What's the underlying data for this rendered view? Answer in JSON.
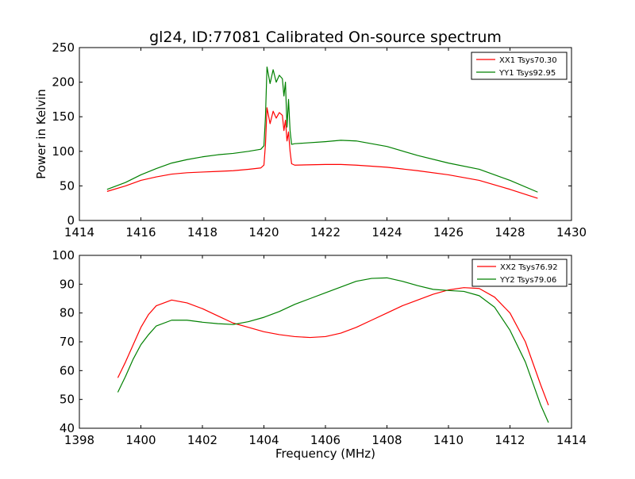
{
  "title": "gl24, ID:77081 Calibrated On-source spectrum",
  "colors": {
    "xx": "#ff0000",
    "yy": "#008000"
  },
  "chart_data": [
    {
      "type": "line",
      "ylabel": "Power in Kelvin",
      "xlabel": "",
      "xlim": [
        1414,
        1430
      ],
      "ylim": [
        0,
        250
      ],
      "xticks": [
        1414,
        1416,
        1418,
        1420,
        1422,
        1424,
        1426,
        1428,
        1430
      ],
      "yticks": [
        0,
        50,
        100,
        150,
        200,
        250
      ],
      "legend_position": "top-right",
      "series": [
        {
          "name": "XX1 Tsys70.30",
          "color": "#ff0000",
          "points": [
            [
              1414.9,
              42
            ],
            [
              1415.5,
              50
            ],
            [
              1416,
              58
            ],
            [
              1416.5,
              63
            ],
            [
              1417,
              67
            ],
            [
              1417.5,
              69
            ],
            [
              1418,
              70
            ],
            [
              1418.5,
              71
            ],
            [
              1419,
              72
            ],
            [
              1419.5,
              74
            ],
            [
              1419.9,
              76
            ],
            [
              1420.0,
              80
            ],
            [
              1420.05,
              110
            ],
            [
              1420.1,
              163
            ],
            [
              1420.2,
              140
            ],
            [
              1420.3,
              158
            ],
            [
              1420.4,
              148
            ],
            [
              1420.5,
              156
            ],
            [
              1420.6,
              152
            ],
            [
              1420.65,
              130
            ],
            [
              1420.7,
              145
            ],
            [
              1420.75,
              115
            ],
            [
              1420.8,
              128
            ],
            [
              1420.85,
              100
            ],
            [
              1420.9,
              82
            ],
            [
              1421,
              80
            ],
            [
              1422,
              81
            ],
            [
              1422.5,
              81
            ],
            [
              1423,
              80
            ],
            [
              1424,
              77
            ],
            [
              1425,
              72
            ],
            [
              1426,
              66
            ],
            [
              1427,
              58
            ],
            [
              1428,
              45
            ],
            [
              1428.9,
              32
            ]
          ]
        },
        {
          "name": "YY1 Tsys92.95",
          "color": "#008000",
          "points": [
            [
              1414.9,
              45
            ],
            [
              1415.5,
              55
            ],
            [
              1416,
              66
            ],
            [
              1416.5,
              75
            ],
            [
              1417,
              83
            ],
            [
              1417.5,
              88
            ],
            [
              1418,
              92
            ],
            [
              1418.5,
              95
            ],
            [
              1419,
              97
            ],
            [
              1419.5,
              100
            ],
            [
              1419.9,
              103
            ],
            [
              1420.0,
              108
            ],
            [
              1420.05,
              150
            ],
            [
              1420.1,
              222
            ],
            [
              1420.2,
              198
            ],
            [
              1420.3,
              218
            ],
            [
              1420.4,
              200
            ],
            [
              1420.5,
              210
            ],
            [
              1420.6,
              205
            ],
            [
              1420.65,
              180
            ],
            [
              1420.7,
              200
            ],
            [
              1420.75,
              135
            ],
            [
              1420.8,
              175
            ],
            [
              1420.85,
              130
            ],
            [
              1420.9,
              110
            ],
            [
              1421,
              111
            ],
            [
              1422,
              114
            ],
            [
              1422.5,
              116
            ],
            [
              1423,
              115
            ],
            [
              1424,
              107
            ],
            [
              1425,
              94
            ],
            [
              1426,
              83
            ],
            [
              1427,
              74
            ],
            [
              1428,
              58
            ],
            [
              1428.9,
              41
            ]
          ]
        }
      ]
    },
    {
      "type": "line",
      "ylabel": "",
      "xlabel": "Frequency (MHz)",
      "xlim": [
        1398,
        1414
      ],
      "ylim": [
        40,
        100
      ],
      "xticks": [
        1398,
        1400,
        1402,
        1404,
        1406,
        1408,
        1410,
        1412,
        1414
      ],
      "yticks": [
        40,
        50,
        60,
        70,
        80,
        90,
        100
      ],
      "legend_position": "top-right",
      "series": [
        {
          "name": "XX2 Tsys76.92",
          "color": "#ff0000",
          "points": [
            [
              1399.25,
              57.5
            ],
            [
              1399.5,
              63
            ],
            [
              1399.75,
              69
            ],
            [
              1400,
              75
            ],
            [
              1400.25,
              79.5
            ],
            [
              1400.5,
              82.5
            ],
            [
              1401,
              84.5
            ],
            [
              1401.5,
              83.5
            ],
            [
              1402,
              81.5
            ],
            [
              1402.5,
              79
            ],
            [
              1403,
              76.5
            ],
            [
              1403.5,
              75
            ],
            [
              1404,
              73.5
            ],
            [
              1404.5,
              72.5
            ],
            [
              1405,
              71.8
            ],
            [
              1405.5,
              71.5
            ],
            [
              1406,
              71.8
            ],
            [
              1406.5,
              73
            ],
            [
              1407,
              75
            ],
            [
              1407.5,
              77.5
            ],
            [
              1408,
              80
            ],
            [
              1408.5,
              82.5
            ],
            [
              1409,
              84.5
            ],
            [
              1409.5,
              86.5
            ],
            [
              1410,
              88
            ],
            [
              1410.5,
              88.8
            ],
            [
              1411,
              88.5
            ],
            [
              1411.5,
              85.5
            ],
            [
              1412,
              80
            ],
            [
              1412.5,
              70
            ],
            [
              1413,
              55
            ],
            [
              1413.25,
              48
            ]
          ]
        },
        {
          "name": "YY2 Tsys79.06",
          "color": "#008000",
          "points": [
            [
              1399.25,
              52.5
            ],
            [
              1399.5,
              58
            ],
            [
              1399.75,
              64
            ],
            [
              1400,
              69
            ],
            [
              1400.25,
              72.5
            ],
            [
              1400.5,
              75.5
            ],
            [
              1401,
              77.5
            ],
            [
              1401.5,
              77.5
            ],
            [
              1402,
              76.8
            ],
            [
              1402.5,
              76.3
            ],
            [
              1403,
              76
            ],
            [
              1403.5,
              77
            ],
            [
              1404,
              78.5
            ],
            [
              1404.5,
              80.5
            ],
            [
              1405,
              83
            ],
            [
              1405.5,
              85
            ],
            [
              1406,
              87
            ],
            [
              1406.5,
              89
            ],
            [
              1407,
              91
            ],
            [
              1407.5,
              92
            ],
            [
              1408,
              92.2
            ],
            [
              1408.5,
              91
            ],
            [
              1409,
              89.5
            ],
            [
              1409.5,
              88.2
            ],
            [
              1410,
              87.8
            ],
            [
              1410.5,
              87.5
            ],
            [
              1411,
              86
            ],
            [
              1411.5,
              82
            ],
            [
              1412,
              74
            ],
            [
              1412.5,
              63
            ],
            [
              1413,
              48
            ],
            [
              1413.25,
              42
            ]
          ]
        }
      ]
    }
  ]
}
